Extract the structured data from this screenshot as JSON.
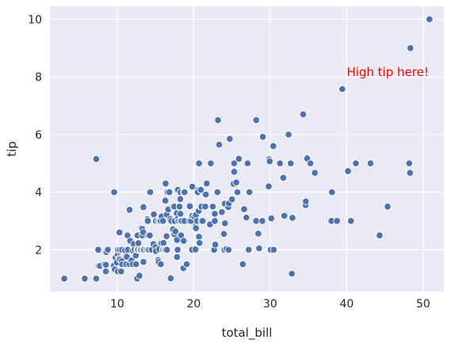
{
  "chart_data": {
    "type": "scatter",
    "xlabel": "total_bill",
    "ylabel": "tip",
    "xlim": [
      1.2,
      52.7
    ],
    "ylim": [
      0.55,
      10.45
    ],
    "x_ticks": [
      10,
      20,
      30,
      40,
      50
    ],
    "y_ticks": [
      2,
      4,
      6,
      8,
      10
    ],
    "grid": true,
    "background_color": "#EAEAF2",
    "point_color": "#4C72B0",
    "annotation": {
      "text": "High tip here!",
      "x": 40,
      "y": 8,
      "color": "#FF0000"
    },
    "series": [
      {
        "points": [
          [
            3.07,
            1.0
          ],
          [
            5.75,
            1.0
          ],
          [
            7.25,
            1.0
          ],
          [
            7.25,
            5.15
          ],
          [
            7.51,
            2.0
          ],
          [
            7.56,
            1.44
          ],
          [
            7.74,
            1.44
          ],
          [
            8.35,
            1.5
          ],
          [
            8.51,
            1.25
          ],
          [
            8.52,
            1.48
          ],
          [
            8.58,
            1.92
          ],
          [
            8.77,
            2.0
          ],
          [
            9.55,
            1.45
          ],
          [
            9.6,
            4.0
          ],
          [
            9.68,
            1.32
          ],
          [
            9.78,
            1.73
          ],
          [
            9.94,
            1.56
          ],
          [
            10.07,
            1.25
          ],
          [
            10.07,
            1.83
          ],
          [
            10.09,
            2.0
          ],
          [
            10.27,
            1.71
          ],
          [
            10.29,
            2.6
          ],
          [
            10.33,
            1.67
          ],
          [
            10.33,
            2.0
          ],
          [
            10.34,
            1.66
          ],
          [
            10.34,
            2.0
          ],
          [
            10.51,
            1.25
          ],
          [
            10.59,
            1.61
          ],
          [
            10.63,
            2.0
          ],
          [
            10.65,
            1.5
          ],
          [
            11.02,
            1.98
          ],
          [
            11.17,
            1.5
          ],
          [
            11.24,
            1.76
          ],
          [
            11.35,
            2.5
          ],
          [
            11.38,
            2.0
          ],
          [
            11.59,
            1.5
          ],
          [
            11.61,
            3.39
          ],
          [
            11.69,
            2.31
          ],
          [
            11.87,
            1.63
          ],
          [
            12.02,
            1.97
          ],
          [
            12.03,
            1.5
          ],
          [
            12.16,
            2.2
          ],
          [
            12.26,
            2.0
          ],
          [
            12.43,
            1.8
          ],
          [
            12.46,
            1.5
          ],
          [
            12.54,
            2.5
          ],
          [
            12.6,
            1.0
          ],
          [
            12.6,
            2.0
          ],
          [
            12.66,
            2.5
          ],
          [
            12.69,
            2.0
          ],
          [
            12.74,
            2.01
          ],
          [
            12.76,
            2.23
          ],
          [
            12.9,
            1.1
          ],
          [
            13.0,
            2.0
          ],
          [
            13.03,
            2.0
          ],
          [
            13.13,
            2.0
          ],
          [
            13.16,
            2.75
          ],
          [
            13.27,
            2.5
          ],
          [
            13.28,
            2.72
          ],
          [
            13.37,
            2.0
          ],
          [
            13.39,
            2.61
          ],
          [
            13.42,
            1.58
          ],
          [
            13.42,
            3.48
          ],
          [
            13.51,
            2.0
          ],
          [
            13.81,
            2.0
          ],
          [
            13.94,
            3.06
          ],
          [
            13.98,
            2.0
          ],
          [
            14.0,
            3.0
          ],
          [
            14.07,
            2.5
          ],
          [
            14.15,
            2.0
          ],
          [
            14.26,
            2.5
          ],
          [
            14.31,
            4.0
          ],
          [
            14.48,
            2.0
          ],
          [
            14.52,
            2.0
          ],
          [
            14.73,
            2.2
          ],
          [
            14.78,
            3.23
          ],
          [
            15.01,
            2.09
          ],
          [
            15.04,
            1.96
          ],
          [
            15.06,
            3.0
          ],
          [
            15.36,
            1.64
          ],
          [
            15.38,
            3.0
          ],
          [
            15.42,
            1.57
          ],
          [
            15.48,
            2.02
          ],
          [
            15.53,
            3.0
          ],
          [
            15.69,
            1.5
          ],
          [
            15.69,
            3.0
          ],
          [
            15.77,
            2.23
          ],
          [
            15.81,
            3.16
          ],
          [
            15.95,
            2.0
          ],
          [
            15.98,
            2.03
          ],
          [
            15.98,
            3.0
          ],
          [
            16.0,
            2.0
          ],
          [
            16.04,
            2.24
          ],
          [
            16.21,
            2.0
          ],
          [
            16.27,
            2.5
          ],
          [
            16.29,
            3.71
          ],
          [
            16.31,
            2.0
          ],
          [
            16.32,
            4.3
          ],
          [
            16.4,
            2.5
          ],
          [
            16.45,
            2.47
          ],
          [
            16.47,
            3.23
          ],
          [
            16.49,
            2.0
          ],
          [
            16.58,
            4.0
          ],
          [
            16.66,
            3.4
          ],
          [
            16.82,
            4.0
          ],
          [
            16.93,
            3.07
          ],
          [
            16.97,
            1.01
          ],
          [
            16.99,
            1.01
          ],
          [
            17.07,
            3.0
          ],
          [
            17.29,
            2.71
          ],
          [
            17.31,
            3.5
          ],
          [
            17.46,
            2.54
          ],
          [
            17.47,
            3.5
          ],
          [
            17.51,
            3.0
          ],
          [
            17.59,
            2.64
          ],
          [
            17.78,
            3.27
          ],
          [
            17.81,
            2.34
          ],
          [
            17.82,
            1.75
          ],
          [
            17.89,
            2.0
          ],
          [
            17.92,
            3.08
          ],
          [
            17.92,
            4.08
          ],
          [
            18.04,
            3.0
          ],
          [
            18.15,
            3.5
          ],
          [
            18.24,
            3.76
          ],
          [
            18.26,
            3.25
          ],
          [
            18.28,
            4.0
          ],
          [
            18.29,
            3.0
          ],
          [
            18.35,
            2.5
          ],
          [
            18.43,
            3.0
          ],
          [
            18.64,
            1.36
          ],
          [
            18.69,
            2.31
          ],
          [
            18.71,
            4.0
          ],
          [
            18.78,
            3.0
          ],
          [
            18.8,
            4.0
          ],
          [
            19.08,
            1.5
          ],
          [
            19.44,
            3.0
          ],
          [
            19.49,
            3.51
          ],
          [
            19.65,
            3.0
          ],
          [
            19.77,
            2.0
          ],
          [
            19.81,
            4.19
          ],
          [
            19.82,
            3.18
          ],
          [
            20.08,
            3.15
          ],
          [
            20.23,
            2.01
          ],
          [
            20.27,
            2.83
          ],
          [
            20.29,
            2.75
          ],
          [
            20.29,
            3.21
          ],
          [
            20.45,
            3.0
          ],
          [
            20.49,
            4.06
          ],
          [
            20.53,
            4.0
          ],
          [
            20.65,
            3.35
          ],
          [
            20.69,
            2.45
          ],
          [
            20.69,
            5.0
          ],
          [
            20.76,
            2.24
          ],
          [
            20.9,
            3.5
          ],
          [
            20.92,
            4.08
          ],
          [
            21.01,
            3.0
          ],
          [
            21.01,
            3.5
          ],
          [
            21.16,
            3.0
          ],
          [
            21.5,
            3.5
          ],
          [
            21.58,
            3.92
          ],
          [
            21.7,
            4.3
          ],
          [
            22.12,
            2.88
          ],
          [
            22.23,
            5.0
          ],
          [
            22.42,
            3.48
          ],
          [
            22.49,
            3.5
          ],
          [
            22.67,
            2.0
          ],
          [
            22.75,
            3.25
          ],
          [
            22.76,
            3.0
          ],
          [
            22.82,
            2.18
          ],
          [
            23.1,
            4.0
          ],
          [
            23.17,
            6.5
          ],
          [
            23.33,
            5.65
          ],
          [
            23.68,
            3.31
          ],
          [
            23.95,
            2.55
          ],
          [
            24.01,
            2.0
          ],
          [
            24.06,
            3.6
          ],
          [
            24.08,
            2.92
          ],
          [
            24.27,
            2.03
          ],
          [
            24.52,
            3.48
          ],
          [
            24.55,
            2.0
          ],
          [
            24.59,
            3.61
          ],
          [
            24.71,
            5.85
          ],
          [
            25.0,
            3.75
          ],
          [
            25.21,
            4.29
          ],
          [
            25.28,
            5.0
          ],
          [
            25.29,
            4.71
          ],
          [
            25.56,
            4.34
          ],
          [
            25.71,
            4.0
          ],
          [
            25.89,
            5.16
          ],
          [
            26.41,
            1.5
          ],
          [
            26.59,
            3.41
          ],
          [
            26.86,
            3.14
          ],
          [
            26.88,
            3.12
          ],
          [
            27.05,
            5.0
          ],
          [
            27.18,
            2.0
          ],
          [
            27.2,
            4.0
          ],
          [
            27.28,
            4.0
          ],
          [
            28.15,
            3.0
          ],
          [
            28.17,
            6.5
          ],
          [
            28.44,
            2.56
          ],
          [
            28.55,
            2.05
          ],
          [
            28.97,
            3.0
          ],
          [
            29.03,
            5.92
          ],
          [
            29.8,
            4.2
          ],
          [
            29.85,
            5.14
          ],
          [
            29.93,
            5.07
          ],
          [
            30.06,
            2.0
          ],
          [
            30.14,
            3.09
          ],
          [
            30.4,
            5.6
          ],
          [
            30.46,
            2.0
          ],
          [
            31.27,
            5.0
          ],
          [
            31.71,
            4.5
          ],
          [
            31.85,
            3.18
          ],
          [
            32.4,
            6.0
          ],
          [
            32.68,
            5.0
          ],
          [
            32.83,
            1.17
          ],
          [
            32.9,
            3.11
          ],
          [
            34.3,
            6.7
          ],
          [
            34.63,
            3.55
          ],
          [
            34.65,
            3.68
          ],
          [
            34.81,
            5.2
          ],
          [
            34.83,
            5.17
          ],
          [
            35.26,
            5.0
          ],
          [
            35.83,
            4.67
          ],
          [
            38.01,
            3.0
          ],
          [
            38.07,
            4.0
          ],
          [
            38.73,
            3.0
          ],
          [
            39.42,
            7.58
          ],
          [
            40.17,
            4.73
          ],
          [
            40.55,
            3.0
          ],
          [
            41.19,
            5.0
          ],
          [
            43.11,
            5.0
          ],
          [
            44.3,
            2.5
          ],
          [
            45.35,
            3.5
          ],
          [
            48.17,
            5.0
          ],
          [
            48.27,
            4.67
          ],
          [
            48.33,
            9.0
          ],
          [
            50.81,
            10.0
          ]
        ]
      }
    ]
  }
}
